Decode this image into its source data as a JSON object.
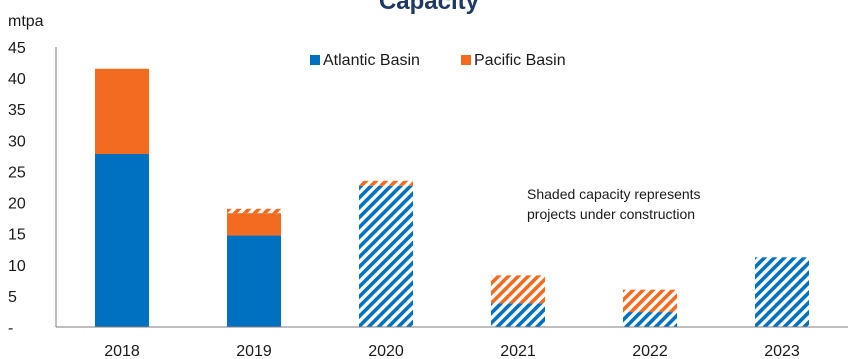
{
  "chart_data": {
    "type": "bar",
    "stacked": true,
    "title": "Capacity",
    "unit_label": "mtpa",
    "categories": [
      "2018",
      "2019",
      "2020",
      "2021",
      "2022",
      "2023"
    ],
    "ylim": [
      0,
      45
    ],
    "y_ticks": [
      {
        "value": 0,
        "label": "-"
      },
      {
        "value": 5,
        "label": "5"
      },
      {
        "value": 10,
        "label": "10"
      },
      {
        "value": 15,
        "label": "15"
      },
      {
        "value": 20,
        "label": "20"
      },
      {
        "value": 25,
        "label": "25"
      },
      {
        "value": 30,
        "label": "30"
      },
      {
        "value": 35,
        "label": "35"
      },
      {
        "value": 40,
        "label": "40"
      },
      {
        "value": 45,
        "label": "45"
      }
    ],
    "grid": false,
    "legend_position": "top-center",
    "series": [
      {
        "name": "Atlantic Basin",
        "color": "#0070c0",
        "operating": [
          27.8,
          14.7,
          0,
          0,
          0,
          0
        ],
        "under_construction": [
          0,
          0,
          22.7,
          3.8,
          2.4,
          11.2
        ]
      },
      {
        "name": "Pacific Basin",
        "color": "#f26b21",
        "operating": [
          13.7,
          3.6,
          0,
          0,
          0,
          0
        ],
        "under_construction": [
          0,
          0.7,
          0.8,
          4.5,
          3.6,
          0
        ]
      }
    ],
    "annotation": [
      "Shaded capacity represents",
      "projects under construction"
    ]
  }
}
